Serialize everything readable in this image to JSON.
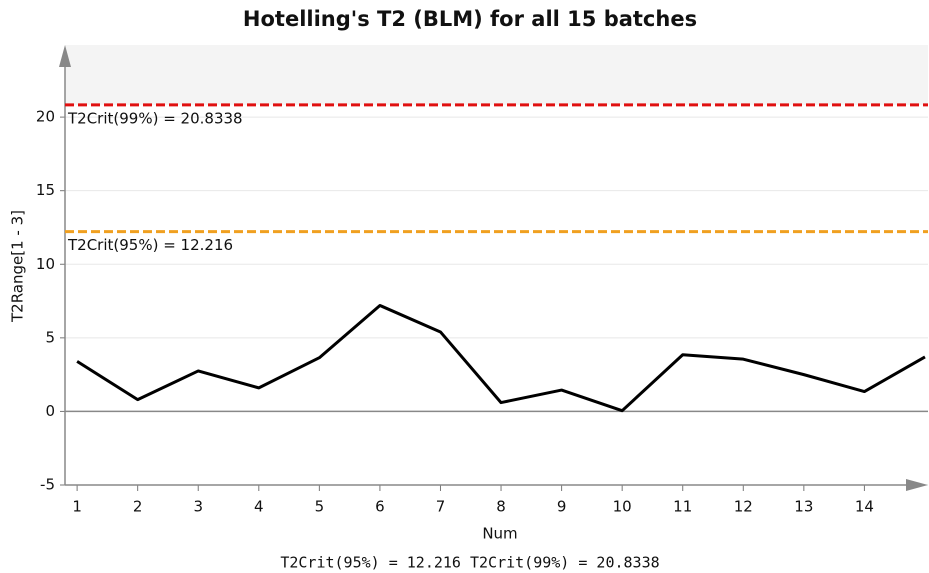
{
  "chart_data": {
    "type": "line",
    "title": "Hotelling's T2 (BLM) for all 15 batches",
    "x_label": "Num",
    "y_label": "T2Range[1 - 3]",
    "x": [
      1,
      2,
      3,
      4,
      5,
      6,
      7,
      8,
      9,
      10,
      11,
      12,
      13,
      14,
      15
    ],
    "series": [
      {
        "name": "T2Range[1 - 3]",
        "color": "#000000",
        "values": [
          3.4,
          0.8,
          2.75,
          1.6,
          3.65,
          7.2,
          5.4,
          0.6,
          1.45,
          0.05,
          3.85,
          3.55,
          2.5,
          1.35,
          3.7
        ]
      }
    ],
    "xlim": [
      0.8,
      15.05
    ],
    "xticks": [
      1,
      2,
      3,
      4,
      5,
      6,
      7,
      8,
      9,
      10,
      11,
      12,
      13,
      14
    ],
    "ylim": [
      -5,
      24.9
    ],
    "yticks": [
      -5,
      0,
      5,
      10,
      15,
      20
    ],
    "grid": true,
    "reference_lines": [
      {
        "value": 20.8338,
        "label": "T2Crit(99%) = 20.8338",
        "color": "#e01010",
        "shade_above": "#f4f4f4"
      },
      {
        "value": 12.216,
        "label": "T2Crit(95%) = 12.216",
        "color": "#f0a020"
      }
    ],
    "footer": "T2Crit(95%) = 12.216  T2Crit(99%) = 20.8338"
  }
}
